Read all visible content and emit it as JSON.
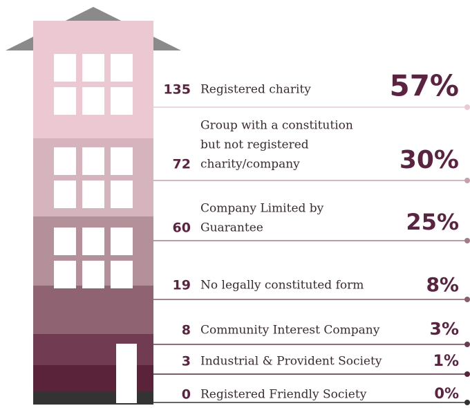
{
  "rows": [
    {
      "count": 135,
      "label": [
        "Registered charity"
      ],
      "share": "57%"
    },
    {
      "count": 72,
      "label": [
        "Group with a constitution",
        "but not registered",
        "charity/company"
      ],
      "share": "30%"
    },
    {
      "count": 60,
      "label": [
        "Company Limited by",
        "Guarantee"
      ],
      "share": "25%"
    },
    {
      "count": 19,
      "label": [
        "No legally constituted form"
      ],
      "share": "8%"
    },
    {
      "count": 8,
      "label": [
        "Community Interest Company"
      ],
      "share": "3%"
    },
    {
      "count": 3,
      "label": [
        "Industrial & Provident Society"
      ],
      "share": "1%"
    },
    {
      "count": 0,
      "label": [
        "Registered Friendly Society"
      ],
      "share": "0%"
    }
  ]
}
